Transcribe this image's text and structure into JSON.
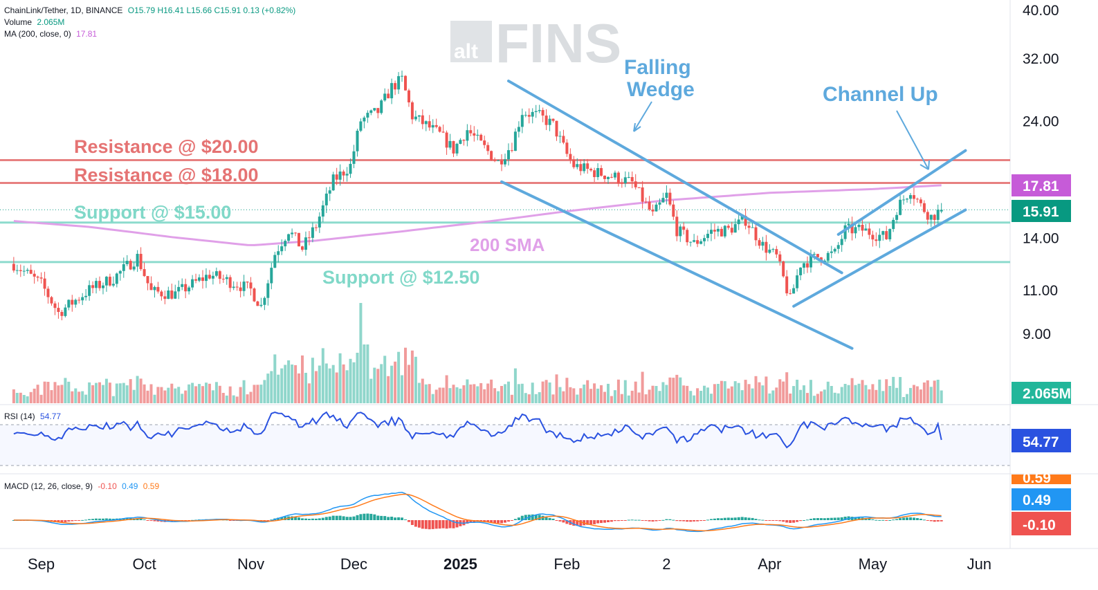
{
  "header": {
    "symbol": "ChainLink/Tether, 1D, BINANCE",
    "ohlc": "O15.79 H16.41 L15.66 C15.91 0.13 (+0.82%)",
    "volume_label": "Volume",
    "volume_value": "2.065M",
    "ma_label": "MA (200, close, 0)",
    "ma_value": "17.81",
    "rsi_label": "RSI (14)",
    "rsi_value": "54.77",
    "macd_label": "MACD (12, 26, close, 9)",
    "macd_hist": "-0.10",
    "macd_line": "0.49",
    "macd_signal": "0.59"
  },
  "watermark": {
    "small": "alt",
    "big": "FINS"
  },
  "colors": {
    "up": "#26a69a",
    "down": "#ef5350",
    "up_vol": "#8fd6cb",
    "down_vol": "#f19b9b",
    "resistance": "#e57373",
    "support": "#80d8c8",
    "trendline": "#5ea9dd",
    "ma": "#e0a0e8",
    "rsi": "#2a52e0",
    "macd": "#2196f3",
    "signal": "#ff7a1a",
    "price_tag": "#089981",
    "ma_tag": "#c65bd8",
    "vol_tag": "#22b69a",
    "rsi_tag": "#2a52e0"
  },
  "annotations": {
    "resistance_20": "Resistance @ $20.00",
    "resistance_18": "Resistance @ $18.00",
    "support_15": "Support @ $15.00",
    "support_125": "Support @ $12.50",
    "sma_200": "200 SMA",
    "falling_wedge_1": "Falling",
    "falling_wedge_2": "Wedge",
    "channel_up": "Channel Up"
  },
  "price_tags": {
    "ma": "17.81",
    "last": "15.91",
    "volume": "2.065M",
    "rsi": "54.77",
    "macd_signal": "0.59",
    "macd_line": "0.49",
    "macd_hist": "-0.10"
  },
  "chart_data": {
    "type": "candlestick",
    "y_scale": "log",
    "y_ticks": [
      9,
      11,
      14,
      24,
      32,
      40
    ],
    "y_tick_labels": [
      "9.00",
      "11.00",
      "14.00",
      "24.00",
      "32.00",
      "40.00"
    ],
    "x_tick_labels": [
      "Sep",
      "Oct",
      "Nov",
      "Dec",
      "2025",
      "Feb",
      "2",
      "Apr",
      "May",
      "Jun"
    ],
    "date_range": [
      "2024-08-24",
      "2025-05-21"
    ],
    "levels": {
      "resistance": [
        20.0,
        18.0
      ],
      "support": [
        15.0,
        12.5
      ]
    },
    "close_path": [
      [
        "2024-08-24",
        12.4
      ],
      [
        "2024-09-01",
        11.3
      ],
      [
        "2024-09-06",
        9.9
      ],
      [
        "2024-09-15",
        11.0
      ],
      [
        "2024-09-22",
        11.6
      ],
      [
        "2024-09-29",
        12.8
      ],
      [
        "2024-10-03",
        10.9
      ],
      [
        "2024-10-10",
        10.8
      ],
      [
        "2024-10-20",
        11.8
      ],
      [
        "2024-10-28",
        11.3
      ],
      [
        "2024-11-01",
        11.0
      ],
      [
        "2024-11-04",
        10.2
      ],
      [
        "2024-11-08",
        13.0
      ],
      [
        "2024-11-12",
        14.5
      ],
      [
        "2024-11-16",
        13.3
      ],
      [
        "2024-11-20",
        14.8
      ],
      [
        "2024-11-25",
        18.2
      ],
      [
        "2024-11-30",
        19.5
      ],
      [
        "2024-12-03",
        24.0
      ],
      [
        "2024-12-08",
        25.0
      ],
      [
        "2024-12-12",
        28.0
      ],
      [
        "2024-12-15",
        29.0
      ],
      [
        "2024-12-18",
        24.5
      ],
      [
        "2024-12-22",
        23.5
      ],
      [
        "2024-12-26",
        22.5
      ],
      [
        "2024-12-30",
        21.0
      ],
      [
        "2025-01-03",
        23.0
      ],
      [
        "2025-01-07",
        21.5
      ],
      [
        "2025-01-12",
        19.8
      ],
      [
        "2025-01-16",
        21.5
      ],
      [
        "2025-01-19",
        25.0
      ],
      [
        "2025-01-24",
        24.5
      ],
      [
        "2025-01-28",
        23.5
      ],
      [
        "2025-02-01",
        20.5
      ],
      [
        "2025-02-03",
        19.5
      ],
      [
        "2025-02-08",
        19.0
      ],
      [
        "2025-02-15",
        18.5
      ],
      [
        "2025-02-20",
        18.0
      ],
      [
        "2025-02-26",
        15.5
      ],
      [
        "2025-03-02",
        17.0
      ],
      [
        "2025-03-05",
        14.5
      ],
      [
        "2025-03-10",
        13.6
      ],
      [
        "2025-03-15",
        14.4
      ],
      [
        "2025-03-20",
        14.5
      ],
      [
        "2025-03-25",
        15.2
      ],
      [
        "2025-03-30",
        13.5
      ],
      [
        "2025-04-03",
        12.8
      ],
      [
        "2025-04-07",
        10.5
      ],
      [
        "2025-04-10",
        12.4
      ],
      [
        "2025-04-15",
        12.8
      ],
      [
        "2025-04-20",
        13.0
      ],
      [
        "2025-04-23",
        14.5
      ],
      [
        "2025-04-28",
        14.5
      ],
      [
        "2025-05-02",
        14.2
      ],
      [
        "2025-05-05",
        14.0
      ],
      [
        "2025-05-08",
        16.0
      ],
      [
        "2025-05-12",
        17.5
      ],
      [
        "2025-05-15",
        16.2
      ],
      [
        "2025-05-18",
        15.4
      ],
      [
        "2025-05-21",
        15.91
      ]
    ],
    "ma200_path": [
      [
        "2024-08-24",
        15.1
      ],
      [
        "2024-09-15",
        14.7
      ],
      [
        "2024-10-10",
        14.0
      ],
      [
        "2024-11-01",
        13.5
      ],
      [
        "2024-11-20",
        13.8
      ],
      [
        "2024-12-15",
        14.4
      ],
      [
        "2025-01-10",
        15.1
      ],
      [
        "2025-02-01",
        15.8
      ],
      [
        "2025-03-01",
        16.6
      ],
      [
        "2025-04-01",
        17.2
      ],
      [
        "2025-05-01",
        17.5
      ],
      [
        "2025-05-21",
        17.81
      ]
    ],
    "falling_wedge": {
      "upper": [
        [
          "2025-01-15",
          28.8
        ],
        [
          "2025-04-22",
          11.9
        ]
      ],
      "lower": [
        [
          "2025-01-13",
          18.1
        ],
        [
          "2025-04-25",
          8.4
        ]
      ]
    },
    "channel_up": {
      "lower": [
        [
          "2025-04-08",
          10.2
        ],
        [
          "2025-05-28",
          15.9
        ]
      ],
      "upper": [
        [
          "2025-04-21",
          14.2
        ],
        [
          "2025-05-28",
          20.9
        ]
      ]
    },
    "volume_peak_dates": [
      "2024-12-03",
      "2024-12-04",
      "2024-12-05"
    ],
    "rsi": {
      "value": 54.77,
      "upper_band": 70,
      "lower_band": 30
    },
    "macd": {
      "macd": 0.49,
      "signal": 0.59,
      "histogram": -0.1
    }
  }
}
